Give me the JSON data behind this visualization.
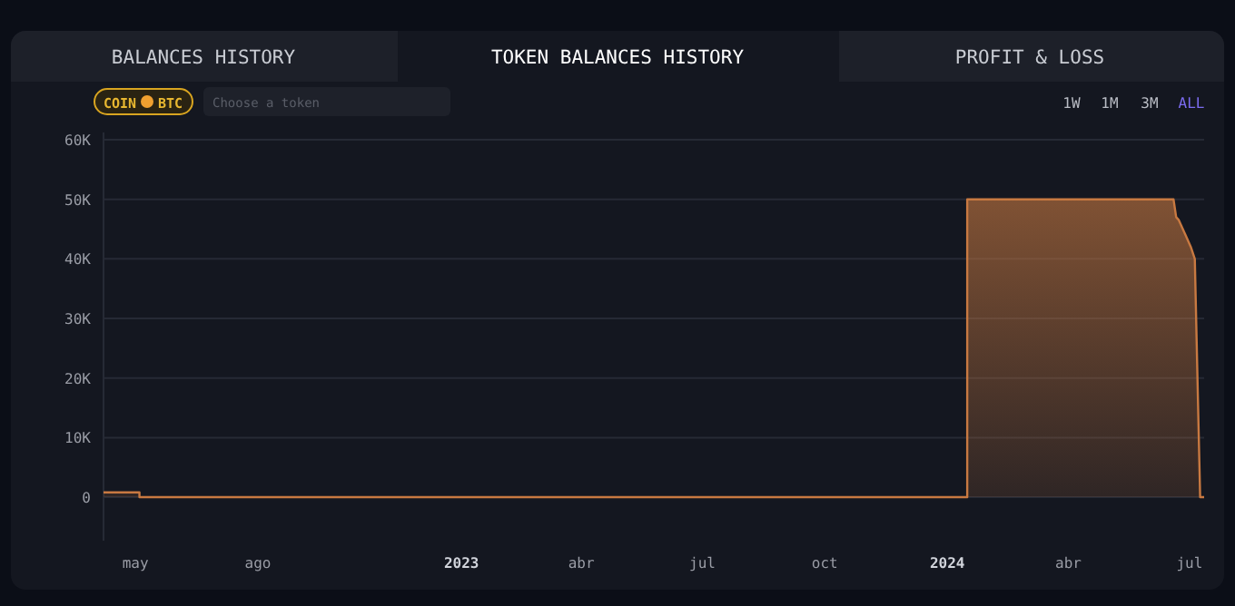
{
  "chart_data": {
    "type": "area",
    "x": [
      "2022-04-07",
      "2022-05-04",
      "2022-05-04",
      "2024-01-16",
      "2024-01-16",
      "2024-06-19",
      "2024-06-21",
      "2024-06-23",
      "2024-06-25",
      "2024-06-28",
      "2024-07-02",
      "2024-07-05",
      "2024-07-09",
      "2024-07-12"
    ],
    "values": [
      800,
      800,
      0,
      0,
      50000,
      50000,
      47000,
      46500,
      45500,
      44000,
      42000,
      40000,
      0,
      0
    ],
    "color": "#c87941",
    "xlim": [
      "2022-04-07",
      "2024-07-12"
    ],
    "xticks": [
      {
        "value": "2022-05",
        "label": "may"
      },
      {
        "value": "2022-08",
        "label": "ago"
      },
      {
        "value": "2023-01",
        "label": "2023"
      },
      {
        "value": "2023-04",
        "label": "abr"
      },
      {
        "value": "2023-07",
        "label": "jul"
      },
      {
        "value": "2023-10",
        "label": "oct"
      },
      {
        "value": "2024-01",
        "label": "2024"
      },
      {
        "value": "2024-04",
        "label": "abr"
      },
      {
        "value": "2024-07",
        "label": "jul"
      }
    ],
    "ylim": [
      -7300,
      60000
    ],
    "yticks": [
      0,
      {
        "value": 10000,
        "label": "10K"
      },
      {
        "value": 20000,
        "label": "20K"
      },
      {
        "value": 30000,
        "label": "30K"
      },
      {
        "value": 40000,
        "label": "40K"
      },
      {
        "value": 50000,
        "label": "50K"
      },
      {
        "value": 60000,
        "label": "60K"
      }
    ],
    "grid": "y",
    "annotations": [
      "BALANCES HISTORY",
      "TOKEN BALANCES HISTORY",
      "PROFIT & LOSS",
      "COIN",
      "BTC",
      "Choose a token",
      "1W",
      "1M",
      "3M",
      "ALL"
    ]
  }
}
